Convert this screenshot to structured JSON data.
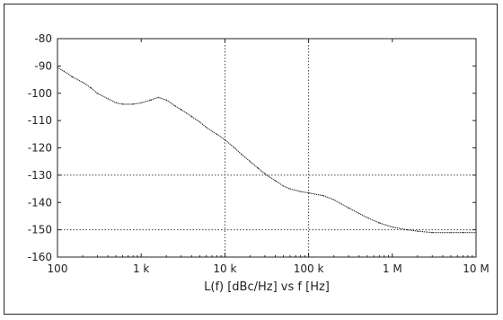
{
  "chart_data": {
    "type": "line",
    "title": "",
    "xlabel": "L(f)  [dBc/Hz] vs f [Hz]",
    "ylabel": "",
    "x_scale": "log",
    "xlim": [
      100,
      10000000
    ],
    "ylim": [
      -160,
      -80
    ],
    "x_ticks": [
      {
        "value": 100,
        "label": "100"
      },
      {
        "value": 1000,
        "label": "1 k"
      },
      {
        "value": 10000,
        "label": "10 k"
      },
      {
        "value": 100000,
        "label": "100 k"
      },
      {
        "value": 1000000,
        "label": "1 M"
      },
      {
        "value": 10000000,
        "label": "10 M"
      }
    ],
    "y_ticks": [
      {
        "value": -80,
        "label": "-80"
      },
      {
        "value": -90,
        "label": "-90"
      },
      {
        "value": -100,
        "label": "-100"
      },
      {
        "value": -110,
        "label": "-110"
      },
      {
        "value": -120,
        "label": "-120"
      },
      {
        "value": -130,
        "label": "-130"
      },
      {
        "value": -140,
        "label": "-140"
      },
      {
        "value": -150,
        "label": "-150"
      },
      {
        "value": -160,
        "label": "-160"
      }
    ],
    "gridlines": {
      "x": [
        10000,
        100000
      ],
      "y": [
        -130,
        -150
      ]
    },
    "series": [
      {
        "color": "#222222",
        "x": [
          100,
          120,
          150,
          200,
          250,
          300,
          400,
          500,
          600,
          800,
          1000,
          1300,
          1600,
          2000,
          2500,
          3000,
          4000,
          5000,
          6000,
          8000,
          10000,
          13000,
          16000,
          20000,
          25000,
          30000,
          40000,
          50000,
          60000,
          80000,
          100000,
          150000,
          200000,
          300000,
          400000,
          500000,
          700000,
          1000000,
          1500000,
          2000000,
          3000000,
          5000000,
          7000000,
          10000000
        ],
        "y": [
          -90.5,
          -92,
          -94,
          -96,
          -98,
          -100,
          -102,
          -103.5,
          -104,
          -104,
          -103.5,
          -102.5,
          -101.5,
          -102.5,
          -104.5,
          -106,
          -108.5,
          -110.5,
          -112.5,
          -115,
          -117,
          -120,
          -122.5,
          -125,
          -127.5,
          -129.5,
          -132,
          -134,
          -135,
          -136,
          -136.5,
          -137.5,
          -139,
          -142,
          -144,
          -145.5,
          -147.5,
          -149,
          -150,
          -150.5,
          -151,
          -151,
          -151,
          -151
        ]
      }
    ]
  }
}
